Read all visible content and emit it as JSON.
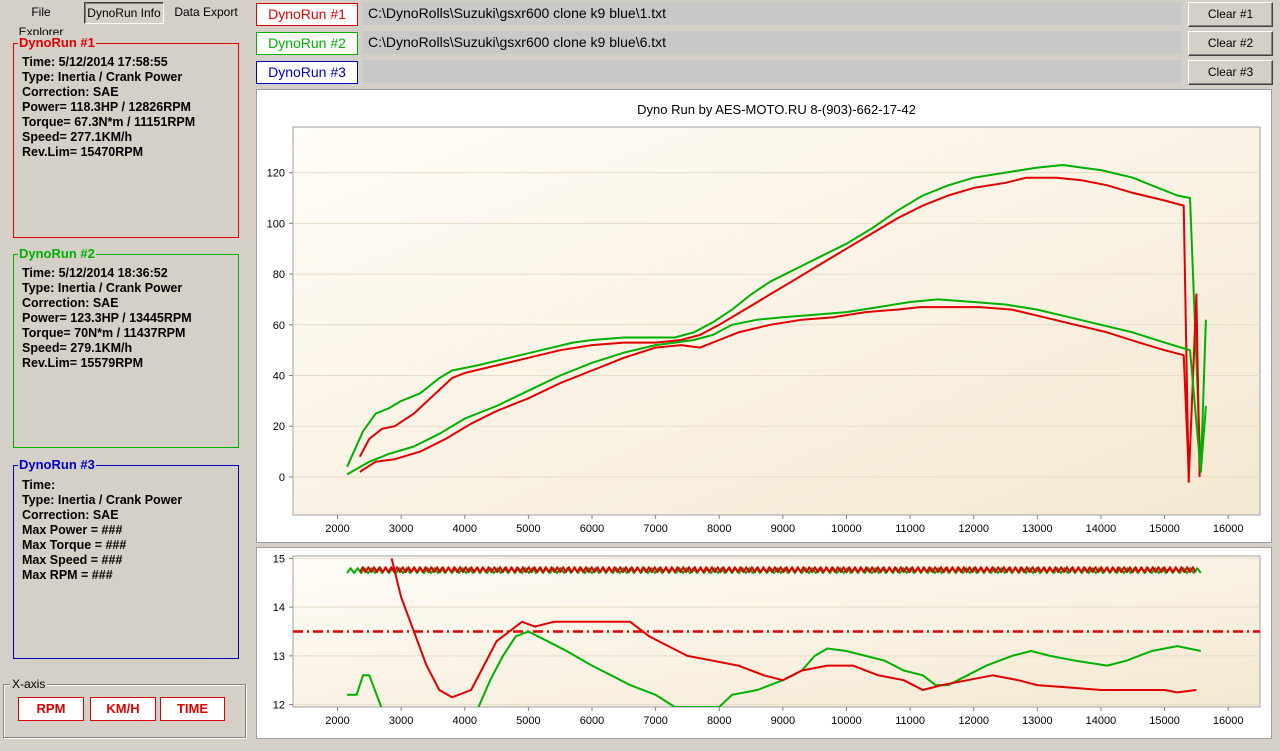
{
  "tabs": [
    {
      "label": "File Explorer"
    },
    {
      "label": "DynoRun Info"
    },
    {
      "label": "Data Export"
    }
  ],
  "run_info": [
    {
      "title": "DynoRun #1",
      "color": "#e00000",
      "lines": [
        "Time: 5/12/2014 17:58:55",
        "Type: Inertia / Crank Power",
        "Correction: SAE",
        "Power=  118.3HP /  12826RPM",
        "Torque=  67.3N*m /  11151RPM",
        "Speed=  277.1KM/h",
        "Rev.Lim=  15470RPM"
      ]
    },
    {
      "title": "DynoRun #2",
      "color": "#00b000",
      "lines": [
        "Time: 5/12/2014 18:36:52",
        "Type: Inertia / Crank Power",
        "Correction: SAE",
        "Power=  123.3HP /  13445RPM",
        "Torque=  70N*m /  11437RPM",
        "Speed=  279.1KM/h",
        "Rev.Lim=  15579RPM"
      ]
    },
    {
      "title": "DynoRun #3",
      "color": "#0000c0",
      "lines": [
        "Time:",
        "Type: Inertia / Crank Power",
        "Correction: SAE",
        "Max Power = ###",
        "Max Torque = ###",
        "Max Speed = ###",
        "Max RPM = ###"
      ]
    }
  ],
  "xaxis": {
    "legend": "X-axis",
    "buttons": [
      "RPM",
      "KM/H",
      "TIME"
    ]
  },
  "runs": [
    {
      "label": "DynoRun #1",
      "path": "C:\\DynoRolls\\Suzuki\\gsxr600 clone k9 blue\\1.txt",
      "clear": "Clear #1",
      "color": "#e00000"
    },
    {
      "label": "DynoRun #2",
      "path": "C:\\DynoRolls\\Suzuki\\gsxr600 clone k9 blue\\6.txt",
      "clear": "Clear #2",
      "color": "#00b000"
    },
    {
      "label": "DynoRun #3",
      "path": "",
      "clear": "Clear #3",
      "color": "#0000c0"
    }
  ],
  "chart_data": [
    {
      "type": "line",
      "title": "Dyno Run by AES-MOTO.RU    8-(903)-662-17-42",
      "xlabel": "",
      "ylabel": "",
      "xlim": [
        1300,
        16500
      ],
      "ylim": [
        -15,
        138
      ],
      "xticks": [
        2000,
        3000,
        4000,
        5000,
        6000,
        7000,
        8000,
        9000,
        10000,
        11000,
        12000,
        13000,
        14000,
        15000,
        16000
      ],
      "yticks": [
        0,
        20,
        40,
        60,
        80,
        100,
        120
      ],
      "grid": true,
      "series": [
        {
          "color": "#00b000",
          "points": [
            [
              2150,
              4
            ],
            [
              2400,
              18
            ],
            [
              2600,
              25
            ],
            [
              2800,
              27
            ],
            [
              3000,
              30
            ],
            [
              3300,
              33
            ],
            [
              3600,
              39
            ],
            [
              3800,
              42
            ],
            [
              4200,
              44
            ],
            [
              4700,
              47
            ],
            [
              5200,
              50
            ],
            [
              5700,
              53
            ],
            [
              6000,
              54
            ],
            [
              6500,
              55
            ],
            [
              7000,
              55
            ],
            [
              7300,
              55
            ],
            [
              7600,
              57
            ],
            [
              7900,
              61
            ],
            [
              8200,
              66
            ],
            [
              8500,
              72
            ],
            [
              8800,
              77
            ],
            [
              9200,
              82
            ],
            [
              9600,
              87
            ],
            [
              10000,
              92
            ],
            [
              10400,
              98
            ],
            [
              10800,
              105
            ],
            [
              11200,
              111
            ],
            [
              11600,
              115
            ],
            [
              12000,
              118
            ],
            [
              12500,
              120
            ],
            [
              13000,
              122
            ],
            [
              13400,
              123
            ],
            [
              13700,
              122
            ],
            [
              14000,
              121
            ],
            [
              14500,
              118
            ],
            [
              15000,
              113
            ],
            [
              15200,
              111
            ],
            [
              15400,
              110
            ],
            [
              15570,
              2
            ],
            [
              15650,
              62
            ]
          ]
        },
        {
          "color": "#e00000",
          "points": [
            [
              2350,
              8
            ],
            [
              2500,
              15
            ],
            [
              2700,
              19
            ],
            [
              2900,
              20
            ],
            [
              3200,
              25
            ],
            [
              3500,
              32
            ],
            [
              3800,
              39
            ],
            [
              4000,
              41
            ],
            [
              4500,
              44
            ],
            [
              5000,
              47
            ],
            [
              5500,
              50
            ],
            [
              6000,
              52
            ],
            [
              6500,
              53
            ],
            [
              7000,
              53
            ],
            [
              7400,
              54
            ],
            [
              7700,
              56
            ],
            [
              8000,
              60
            ],
            [
              8400,
              66
            ],
            [
              8800,
              72
            ],
            [
              9200,
              78
            ],
            [
              9600,
              84
            ],
            [
              10000,
              90
            ],
            [
              10400,
              96
            ],
            [
              10800,
              102
            ],
            [
              11200,
              107
            ],
            [
              11600,
              111
            ],
            [
              12000,
              114
            ],
            [
              12500,
              116
            ],
            [
              12826,
              118
            ],
            [
              13300,
              118
            ],
            [
              13700,
              117
            ],
            [
              14100,
              115
            ],
            [
              14500,
              112
            ],
            [
              15000,
              109
            ],
            [
              15300,
              107
            ],
            [
              15380,
              -2
            ],
            [
              15500,
              72
            ],
            [
              15550,
              0
            ]
          ]
        },
        {
          "color": "#00b000",
          "points": [
            [
              2150,
              1
            ],
            [
              2500,
              6
            ],
            [
              2800,
              9
            ],
            [
              3200,
              12
            ],
            [
              3600,
              17
            ],
            [
              4000,
              23
            ],
            [
              4500,
              28
            ],
            [
              5000,
              34
            ],
            [
              5500,
              40
            ],
            [
              6000,
              45
            ],
            [
              6500,
              49
            ],
            [
              7000,
              52
            ],
            [
              7300,
              53
            ],
            [
              7600,
              54
            ],
            [
              7900,
              56
            ],
            [
              8200,
              60
            ],
            [
              8600,
              62
            ],
            [
              9000,
              63
            ],
            [
              9500,
              64
            ],
            [
              10000,
              65
            ],
            [
              10500,
              67
            ],
            [
              11000,
              69
            ],
            [
              11437,
              70
            ],
            [
              12000,
              69
            ],
            [
              12500,
              68
            ],
            [
              13000,
              66
            ],
            [
              13500,
              63
            ],
            [
              14000,
              60
            ],
            [
              14500,
              57
            ],
            [
              15000,
              53
            ],
            [
              15400,
              50
            ],
            [
              15570,
              2
            ],
            [
              15650,
              28
            ]
          ]
        },
        {
          "color": "#e00000",
          "points": [
            [
              2350,
              2
            ],
            [
              2600,
              6
            ],
            [
              2900,
              7
            ],
            [
              3300,
              10
            ],
            [
              3700,
              15
            ],
            [
              4100,
              21
            ],
            [
              4500,
              26
            ],
            [
              5000,
              31
            ],
            [
              5500,
              37
            ],
            [
              6000,
              42
            ],
            [
              6500,
              47
            ],
            [
              7000,
              51
            ],
            [
              7400,
              52
            ],
            [
              7700,
              51
            ],
            [
              8000,
              54
            ],
            [
              8300,
              57
            ],
            [
              8800,
              60
            ],
            [
              9300,
              62
            ],
            [
              9800,
              63
            ],
            [
              10300,
              65
            ],
            [
              10800,
              66
            ],
            [
              11151,
              67
            ],
            [
              11600,
              67
            ],
            [
              12100,
              67
            ],
            [
              12600,
              66
            ],
            [
              13100,
              63
            ],
            [
              13600,
              60
            ],
            [
              14100,
              57
            ],
            [
              14600,
              53
            ],
            [
              15000,
              50
            ],
            [
              15300,
              48
            ],
            [
              15380,
              2
            ]
          ]
        }
      ]
    },
    {
      "type": "line",
      "title": "",
      "xlabel": "",
      "ylabel": "",
      "xlim": [
        1300,
        16500
      ],
      "ylim": [
        11.95,
        15.05
      ],
      "xticks": [
        2000,
        3000,
        4000,
        5000,
        6000,
        7000,
        8000,
        9000,
        10000,
        11000,
        12000,
        13000,
        14000,
        15000,
        16000
      ],
      "yticks": [
        12,
        13,
        14,
        15
      ],
      "grid": true,
      "reference_line": {
        "y": 13.5,
        "color": "#e00000"
      },
      "series": [
        {
          "color": "#00b000",
          "zigzag": {
            "x0": 2150,
            "x1": 15570,
            "lo": 14.7,
            "hi": 14.8,
            "step": 110
          }
        },
        {
          "color": "#e00000",
          "zigzag": {
            "x0": 2350,
            "x1": 15500,
            "lo": 14.72,
            "hi": 14.82,
            "step": 90
          }
        },
        {
          "color": "#00b000",
          "points": [
            [
              2150,
              12.2
            ],
            [
              2300,
              12.2
            ],
            [
              2400,
              12.6
            ],
            [
              2500,
              12.6
            ],
            [
              2700,
              11.9
            ],
            [
              4200,
              11.9
            ],
            [
              4400,
              12.5
            ],
            [
              4600,
              13.0
            ],
            [
              4800,
              13.4
            ],
            [
              5000,
              13.5
            ],
            [
              5300,
              13.3
            ],
            [
              5600,
              13.1
            ],
            [
              6000,
              12.8
            ],
            [
              6300,
              12.6
            ],
            [
              6600,
              12.4
            ],
            [
              7000,
              12.2
            ],
            [
              7300,
              11.95
            ],
            [
              8000,
              11.95
            ],
            [
              8200,
              12.2
            ],
            [
              8600,
              12.3
            ],
            [
              9000,
              12.5
            ],
            [
              9300,
              12.7
            ],
            [
              9500,
              13.0
            ],
            [
              9700,
              13.15
            ],
            [
              10000,
              13.1
            ],
            [
              10300,
              13.0
            ],
            [
              10600,
              12.9
            ],
            [
              10900,
              12.7
            ],
            [
              11200,
              12.6
            ],
            [
              11400,
              12.4
            ],
            [
              11600,
              12.4
            ],
            [
              11900,
              12.6
            ],
            [
              12200,
              12.8
            ],
            [
              12600,
              13.0
            ],
            [
              12900,
              13.1
            ],
            [
              13200,
              13.0
            ],
            [
              13600,
              12.9
            ],
            [
              14100,
              12.8
            ],
            [
              14400,
              12.9
            ],
            [
              14800,
              13.1
            ],
            [
              15200,
              13.2
            ],
            [
              15570,
              13.1
            ]
          ]
        },
        {
          "color": "#e00000",
          "points": [
            [
              2850,
              15.0
            ],
            [
              3000,
              14.2
            ],
            [
              3200,
              13.5
            ],
            [
              3400,
              12.8
            ],
            [
              3600,
              12.3
            ],
            [
              3800,
              12.15
            ],
            [
              4100,
              12.3
            ],
            [
              4300,
              12.8
            ],
            [
              4500,
              13.3
            ],
            [
              4700,
              13.5
            ],
            [
              4900,
              13.7
            ],
            [
              5100,
              13.6
            ],
            [
              5400,
              13.7
            ],
            [
              5800,
              13.7
            ],
            [
              6200,
              13.7
            ],
            [
              6600,
              13.7
            ],
            [
              6900,
              13.4
            ],
            [
              7200,
              13.2
            ],
            [
              7500,
              13.0
            ],
            [
              7900,
              12.9
            ],
            [
              8300,
              12.8
            ],
            [
              8700,
              12.6
            ],
            [
              9000,
              12.5
            ],
            [
              9300,
              12.7
            ],
            [
              9700,
              12.8
            ],
            [
              10100,
              12.8
            ],
            [
              10500,
              12.6
            ],
            [
              10900,
              12.5
            ],
            [
              11200,
              12.3
            ],
            [
              11500,
              12.4
            ],
            [
              11900,
              12.5
            ],
            [
              12300,
              12.6
            ],
            [
              12700,
              12.5
            ],
            [
              13000,
              12.4
            ],
            [
              13500,
              12.35
            ],
            [
              14000,
              12.3
            ],
            [
              14500,
              12.3
            ],
            [
              15000,
              12.3
            ],
            [
              15200,
              12.25
            ],
            [
              15500,
              12.3
            ]
          ]
        }
      ]
    }
  ]
}
